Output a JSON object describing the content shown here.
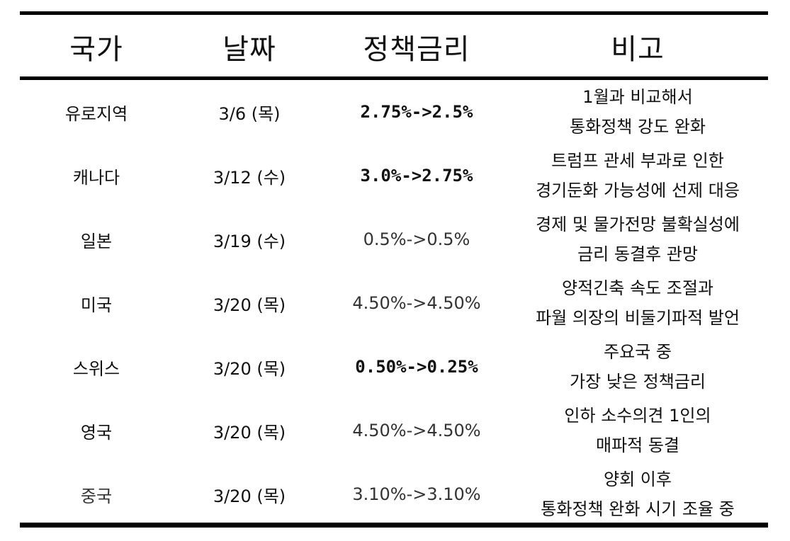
{
  "table": {
    "headers": {
      "country": "국가",
      "date": "날짜",
      "rate": "정책금리",
      "note": "비고"
    },
    "rows": [
      {
        "country": "유로지역",
        "date": "3/6 (목)",
        "rate": "2.75%->2.5%",
        "note": [
          "1월과 비교해서",
          "통화정책 강도 완화"
        ]
      },
      {
        "country": "캐나다",
        "date": "3/12 (수)",
        "rate": "3.0%->2.75%",
        "note": [
          "트럼프 관세 부과로 인한",
          "경기둔화 가능성에 선제 대응"
        ]
      },
      {
        "country": "일본",
        "date": "3/19 (수)",
        "rate": "0.5%->0.5%",
        "note": [
          "경제 및 물가전망 불확실성에",
          "금리 동결후 관망"
        ]
      },
      {
        "country": "미국",
        "date": "3/20 (목)",
        "rate": "4.50%->4.50%",
        "note": [
          "양적긴축 속도 조절과",
          "파월 의장의 비둘기파적 발언"
        ]
      },
      {
        "country": "스위스",
        "date": "3/20 (목)",
        "rate": "0.50%->0.25%",
        "note": [
          "주요국 중",
          "가장 낮은 정책금리"
        ]
      },
      {
        "country": "영국",
        "date": "3/20 (목)",
        "rate": "4.50%->4.50%",
        "note": [
          "인하 소수의견 1인의",
          "매파적 동결"
        ]
      },
      {
        "country": "중국",
        "date": "3/20 (목)",
        "rate": "3.10%->3.10%",
        "note": [
          "양회 이후",
          "통화정책 완화 시기 조율 중"
        ]
      }
    ]
  }
}
